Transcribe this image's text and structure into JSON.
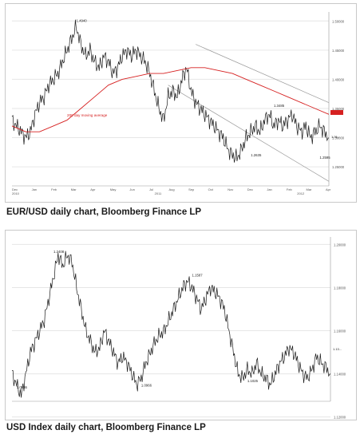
{
  "captions": {
    "chart1": "EUR/USD daily chart, Bloomberg Finance LP",
    "chart2": "USD Index daily chart, Bloomberg Finance LP"
  },
  "colors": {
    "price_line": "#1a1a1a",
    "moving_average": "#d62020",
    "channel": "#9a9a9a",
    "grid": "#e6e6e6",
    "last_price_box": "#d62020"
  },
  "chart_data": [
    {
      "type": "line",
      "title": "EUR/USD daily chart, Bloomberg Finance LP",
      "x_tick_labels": [
        "Dec",
        "Jan",
        "Feb",
        "Mar",
        "Apr",
        "May",
        "Jun",
        "Jul",
        "Aug",
        "Sep",
        "Oct",
        "Nov",
        "Dec",
        "Jan",
        "Feb",
        "Mar",
        "Apr"
      ],
      "x_year_labels": [
        "2010",
        "2011",
        "2012"
      ],
      "y_tick_labels": [
        "1.50000",
        "1.45000",
        "1.40000",
        "1.35000",
        "1.30000",
        "1.25000"
      ],
      "ylim": [
        1.22,
        1.51
      ],
      "series": [
        {
          "name": "EUR/USD",
          "x": [
            0,
            5,
            10,
            15,
            20,
            25,
            30,
            35,
            40,
            45,
            50,
            55,
            60,
            65,
            70,
            75,
            80,
            85,
            90,
            95,
            100,
            105,
            110,
            115,
            120,
            125,
            130,
            135,
            140,
            145,
            150,
            155,
            160,
            165,
            170,
            175,
            180,
            185,
            190,
            195,
            200,
            205,
            210,
            215,
            220,
            225,
            230,
            235,
            240,
            245,
            250,
            255,
            260,
            265,
            270,
            275,
            280,
            285,
            290,
            295,
            300,
            305,
            310,
            315,
            320,
            325,
            330,
            335,
            340,
            345
          ],
          "values": [
            1.33,
            1.32,
            1.31,
            1.3,
            1.31,
            1.34,
            1.36,
            1.37,
            1.39,
            1.4,
            1.41,
            1.43,
            1.45,
            1.47,
            1.49,
            1.46,
            1.44,
            1.45,
            1.43,
            1.42,
            1.44,
            1.43,
            1.41,
            1.42,
            1.44,
            1.45,
            1.44,
            1.45,
            1.44,
            1.43,
            1.41,
            1.38,
            1.35,
            1.33,
            1.37,
            1.38,
            1.37,
            1.4,
            1.42,
            1.38,
            1.36,
            1.35,
            1.34,
            1.33,
            1.32,
            1.31,
            1.3,
            1.28,
            1.27,
            1.265,
            1.28,
            1.3,
            1.31,
            1.32,
            1.31,
            1.33,
            1.34,
            1.32,
            1.33,
            1.32,
            1.33,
            1.34,
            1.32,
            1.31,
            1.32,
            1.3,
            1.31,
            1.32,
            1.31,
            1.3
          ]
        },
        {
          "name": "200 day moving average",
          "x": [
            0,
            15,
            30,
            45,
            60,
            75,
            90,
            105,
            120,
            135,
            150,
            165,
            180,
            195,
            210,
            225,
            240,
            255,
            270,
            285,
            300,
            315,
            330,
            345
          ],
          "values": [
            1.32,
            1.31,
            1.31,
            1.32,
            1.33,
            1.35,
            1.37,
            1.39,
            1.4,
            1.405,
            1.41,
            1.41,
            1.415,
            1.42,
            1.42,
            1.415,
            1.41,
            1.4,
            1.39,
            1.38,
            1.37,
            1.36,
            1.35,
            1.34
          ]
        }
      ],
      "annotations": [
        {
          "text": "1.4940",
          "x": 70,
          "y": 1.494
        },
        {
          "text": "1.3485",
          "x": 285,
          "y": 1.3485
        },
        {
          "text": "1.2595",
          "x": 335,
          "y": 1.2595
        },
        {
          "text": "1.2635",
          "x": 260,
          "y": 1.2635
        },
        {
          "text": "200 day moving average",
          "x": 60,
          "y": 1.332
        }
      ],
      "last_price": "1.31..."
    },
    {
      "type": "line",
      "title": "USD Index daily chart, Bloomberg Finance LP",
      "y_tick_labels": [
        "1.20000",
        "1.18000",
        "1.16000",
        "1.14000",
        "1.12000"
      ],
      "ylim": [
        1.128,
        1.202
      ],
      "series": [
        {
          "name": "USD Index",
          "x": [
            0,
            5,
            10,
            15,
            20,
            25,
            30,
            35,
            40,
            45,
            50,
            55,
            60,
            65,
            70,
            75,
            80,
            85,
            90,
            95,
            100,
            105,
            110,
            115,
            120,
            125,
            130,
            135,
            140,
            145,
            150,
            155,
            160,
            165,
            170,
            175,
            180,
            185,
            190,
            195,
            200,
            205,
            210,
            215,
            220,
            225,
            230,
            235,
            240,
            245,
            250,
            255,
            260,
            265,
            270,
            275,
            280,
            285,
            290,
            295,
            300,
            305,
            310,
            315,
            320,
            325,
            330,
            335,
            340,
            345
          ],
          "values": [
            1.14,
            1.135,
            1.13,
            1.14,
            1.15,
            1.155,
            1.16,
            1.165,
            1.175,
            1.185,
            1.195,
            1.19,
            1.195,
            1.192,
            1.18,
            1.17,
            1.16,
            1.155,
            1.15,
            1.152,
            1.16,
            1.155,
            1.15,
            1.145,
            1.148,
            1.145,
            1.14,
            1.135,
            1.138,
            1.145,
            1.15,
            1.155,
            1.158,
            1.16,
            1.165,
            1.17,
            1.175,
            1.18,
            1.183,
            1.18,
            1.175,
            1.17,
            1.175,
            1.18,
            1.178,
            1.175,
            1.17,
            1.16,
            1.15,
            1.14,
            1.138,
            1.142,
            1.14,
            1.145,
            1.14,
            1.138,
            1.135,
            1.14,
            1.145,
            1.148,
            1.152,
            1.15,
            1.145,
            1.14,
            1.138,
            1.142,
            1.148,
            1.145,
            1.143,
            1.14
          ]
        }
      ],
      "annotations": [
        {
          "text": "1.2408",
          "x": 45,
          "y": 1.195
        },
        {
          "text": "1.0936",
          "x": 5,
          "y": 1.132
        },
        {
          "text": "1.0966",
          "x": 140,
          "y": 1.133
        },
        {
          "text": "1.1587",
          "x": 195,
          "y": 1.184
        },
        {
          "text": "1.1025",
          "x": 255,
          "y": 1.135
        }
      ],
      "last_price": "1.13..."
    }
  ]
}
